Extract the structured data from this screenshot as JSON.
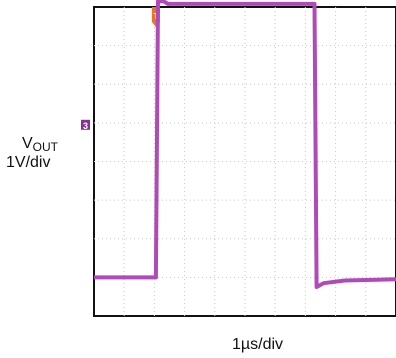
{
  "chart_data": {
    "type": "line",
    "title": "",
    "ylabel": {
      "prefix": "V",
      "subscript": "OUT",
      "scale": "1V/div"
    },
    "xlabel": "1µs/div",
    "grid": true,
    "grid_divisions": {
      "x": 10,
      "y": 8
    },
    "xlim_div": [
      0,
      10
    ],
    "ylim_div": [
      0,
      8
    ],
    "channel_marker": {
      "text": "3",
      "y_div": 4.95
    },
    "trigger_marker": {
      "text": "T",
      "x_div": 2.05
    },
    "series": [
      {
        "color": "#b04ab8",
        "points_div": [
          [
            0.0,
            1.0
          ],
          [
            2.05,
            1.0
          ],
          [
            2.12,
            8.15
          ],
          [
            2.3,
            8.15
          ],
          [
            2.45,
            8.08
          ],
          [
            7.0,
            8.08
          ],
          [
            7.3,
            8.08
          ],
          [
            7.37,
            0.75
          ],
          [
            7.6,
            0.85
          ],
          [
            8.3,
            0.92
          ],
          [
            10.0,
            0.95
          ]
        ]
      }
    ]
  }
}
